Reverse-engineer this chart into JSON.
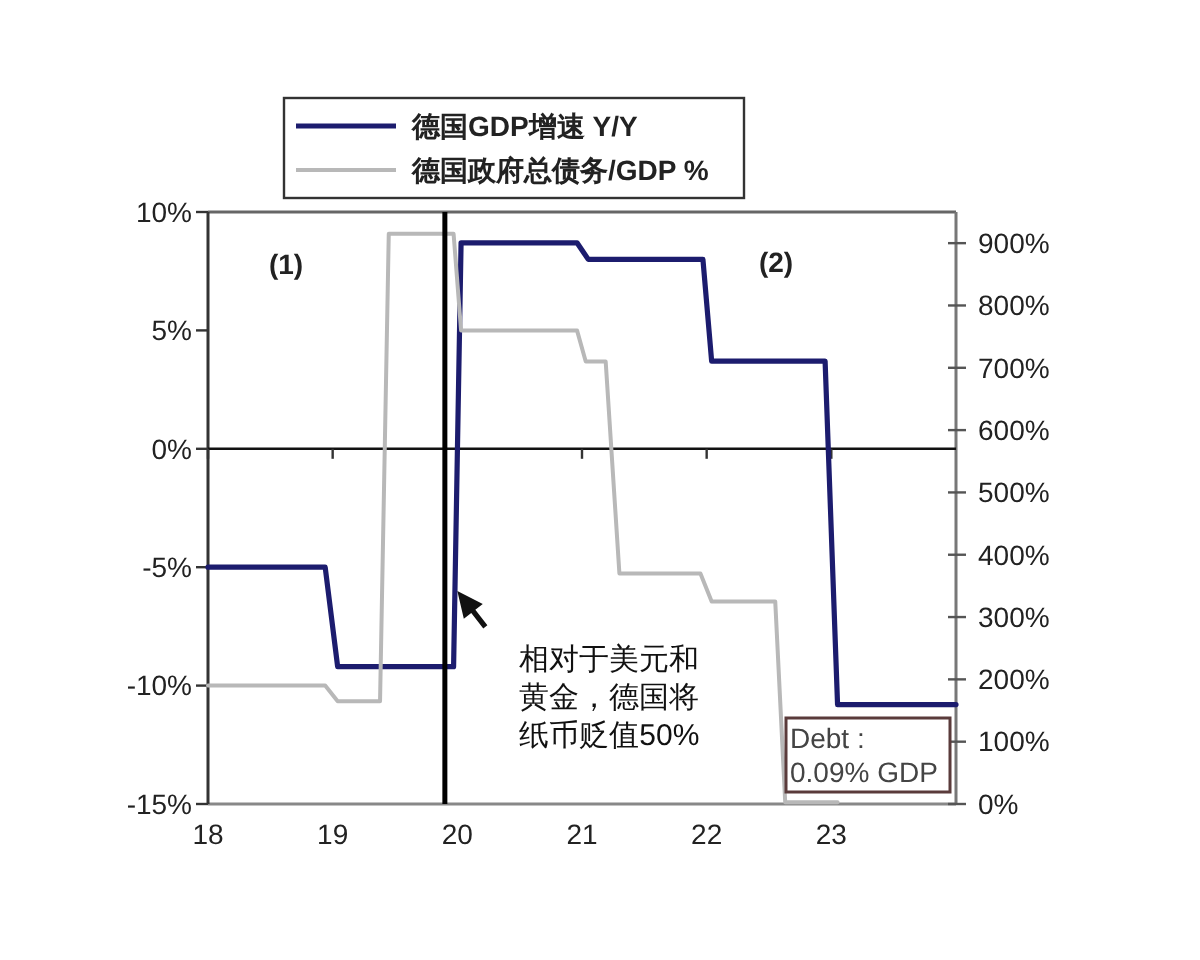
{
  "chart_data": {
    "type": "line",
    "xlim": [
      18,
      24
    ],
    "xticks": [
      18,
      19,
      20,
      21,
      22,
      23
    ],
    "ylim": [
      -15,
      10
    ],
    "yticks": [
      {
        "value": 10,
        "label": "10%"
      },
      {
        "value": 5,
        "label": "5%"
      },
      {
        "value": 0,
        "label": "0%"
      },
      {
        "value": -5,
        "label": "-5%"
      },
      {
        "value": -10,
        "label": "-10%"
      },
      {
        "value": -15,
        "label": "-15%"
      }
    ],
    "y2lim": [
      0,
      950
    ],
    "y2ticks": [
      {
        "value": 0,
        "label": "0%"
      },
      {
        "value": 100,
        "label": "100%"
      },
      {
        "value": 200,
        "label": "200%"
      },
      {
        "value": 300,
        "label": "300%"
      },
      {
        "value": 400,
        "label": "400%"
      },
      {
        "value": 500,
        "label": "500%"
      },
      {
        "value": 600,
        "label": "600%"
      },
      {
        "value": 700,
        "label": "700%"
      },
      {
        "value": 800,
        "label": "800%"
      },
      {
        "value": 900,
        "label": "900%"
      }
    ],
    "series": [
      {
        "name": "德国GDP增速 Y/Y",
        "color": "#1c1c6e",
        "x": [
          18,
          18.94,
          19.04,
          19.97,
          20.03,
          20.96,
          21.05,
          21.97,
          22.04,
          22.95,
          23.05,
          24
        ],
        "values": [
          -5,
          -5,
          -9.2,
          -9.2,
          8.7,
          8.7,
          8.0,
          8.0,
          3.7,
          3.7,
          -10.8,
          -10.8
        ]
      },
      {
        "name": "德国政府总债务/GDP %",
        "color": "#b8b8b8",
        "axis": "y2",
        "x": [
          18,
          18.94,
          19.04,
          19.38,
          19.45,
          19.97,
          20.03,
          20.96,
          21.03,
          21.19,
          21.3,
          21.95,
          22.04,
          22.55,
          22.63,
          23.05
        ],
        "values": [
          190,
          190,
          165,
          165,
          915,
          915,
          760,
          760,
          710,
          710,
          370,
          370,
          325,
          325,
          3,
          3
        ]
      }
    ],
    "ref_lines": [
      {
        "axis": "x",
        "value": 19.9,
        "color": "#000000"
      }
    ],
    "annotations": [
      "(1)",
      "(2)",
      {
        "text": "相对于美元和黄金，德国将纸币贬值50%",
        "x": 20,
        "y": -6
      },
      "Debt :\n0.09% GDP"
    ],
    "legend": "top"
  }
}
